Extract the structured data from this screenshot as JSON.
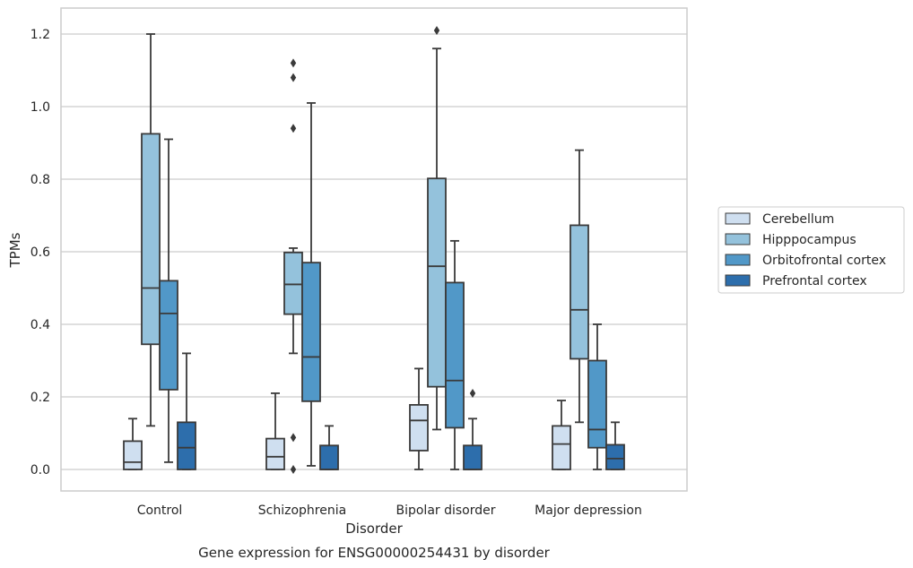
{
  "chart_data": {
    "type": "box",
    "caption": "Gene expression for ENSG00000254431 by disorder",
    "xlabel": "Disorder",
    "ylabel": "TPMs",
    "ylim": [
      -0.06,
      1.27
    ],
    "yticks": [
      0.0,
      0.2,
      0.4,
      0.6,
      0.8,
      1.0,
      1.2
    ],
    "ytick_labels": [
      "0.0",
      "0.2",
      "0.4",
      "0.6",
      "0.8",
      "1.0",
      "1.2"
    ],
    "grid": "horizontal",
    "legend_position": "right",
    "categories": [
      "Control",
      "Schizophrenia",
      "Bipolar disorder",
      "Major depression"
    ],
    "series": [
      {
        "name": "Cerebellum",
        "color": "#cfdff0",
        "boxes": [
          {
            "whislo": 0.0,
            "q1": 0.0,
            "med": 0.02,
            "q3": 0.078,
            "whishi": 0.14,
            "fliers": []
          },
          {
            "whislo": 0.0,
            "q1": 0.0,
            "med": 0.035,
            "q3": 0.085,
            "whishi": 0.21,
            "fliers": []
          },
          {
            "whislo": 0.0,
            "q1": 0.052,
            "med": 0.135,
            "q3": 0.178,
            "whishi": 0.278,
            "fliers": []
          },
          {
            "whislo": 0.0,
            "q1": 0.0,
            "med": 0.07,
            "q3": 0.12,
            "whishi": 0.19,
            "fliers": []
          }
        ]
      },
      {
        "name": "Hipppocampus",
        "color": "#94c2dc",
        "boxes": [
          {
            "whislo": 0.12,
            "q1": 0.345,
            "med": 0.5,
            "q3": 0.925,
            "whishi": 1.2,
            "fliers": []
          },
          {
            "whislo": 0.32,
            "q1": 0.428,
            "med": 0.51,
            "q3": 0.598,
            "whishi": 0.61,
            "fliers": [
              0.0,
              0.088,
              0.94,
              1.08,
              1.12
            ]
          },
          {
            "whislo": 0.11,
            "q1": 0.228,
            "med": 0.56,
            "q3": 0.802,
            "whishi": 1.16,
            "fliers": [
              1.21
            ]
          },
          {
            "whislo": 0.13,
            "q1": 0.305,
            "med": 0.44,
            "q3": 0.673,
            "whishi": 0.88,
            "fliers": []
          }
        ]
      },
      {
        "name": "Orbitofrontal cortex",
        "color": "#5198c8",
        "boxes": [
          {
            "whislo": 0.02,
            "q1": 0.22,
            "med": 0.43,
            "q3": 0.52,
            "whishi": 0.91,
            "fliers": []
          },
          {
            "whislo": 0.01,
            "q1": 0.188,
            "med": 0.31,
            "q3": 0.57,
            "whishi": 1.01,
            "fliers": []
          },
          {
            "whislo": 0.0,
            "q1": 0.115,
            "med": 0.245,
            "q3": 0.515,
            "whishi": 0.63,
            "fliers": []
          },
          {
            "whislo": 0.0,
            "q1": 0.06,
            "med": 0.11,
            "q3": 0.3,
            "whishi": 0.4,
            "fliers": []
          }
        ]
      },
      {
        "name": "Prefrontal cortex",
        "color": "#2d6eac",
        "boxes": [
          {
            "whislo": 0.0,
            "q1": 0.0,
            "med": 0.06,
            "q3": 0.13,
            "whishi": 0.32,
            "fliers": []
          },
          {
            "whislo": 0.0,
            "q1": 0.0,
            "med": 0.0,
            "q3": 0.066,
            "whishi": 0.12,
            "fliers": []
          },
          {
            "whislo": 0.0,
            "q1": 0.0,
            "med": 0.0,
            "q3": 0.066,
            "whishi": 0.14,
            "fliers": [
              0.21
            ]
          },
          {
            "whislo": 0.0,
            "q1": 0.0,
            "med": 0.03,
            "q3": 0.068,
            "whishi": 0.13,
            "fliers": []
          }
        ]
      }
    ]
  }
}
